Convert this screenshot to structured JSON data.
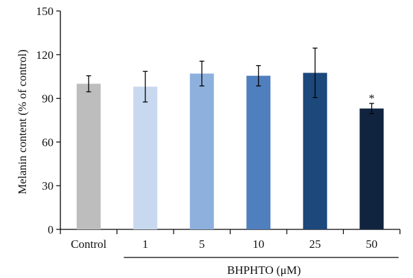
{
  "chart_data": {
    "type": "bar",
    "categories": [
      "Control",
      "1",
      "5",
      "10",
      "25",
      "50"
    ],
    "values": [
      100,
      98,
      107,
      105.5,
      107.5,
      83
    ],
    "errors": [
      5.5,
      10.5,
      8.5,
      7,
      17,
      3.5
    ],
    "colors": [
      "#bdbdbd",
      "#c7d8ef",
      "#8eb0dc",
      "#4f7fbd",
      "#1c487b",
      "#11243f"
    ],
    "significant": [
      false,
      false,
      false,
      false,
      false,
      true
    ],
    "significance_mark": "*",
    "ylabel": "Melanin content (% of control)",
    "ylim": [
      0,
      150
    ],
    "yticks": [
      0,
      30,
      60,
      90,
      120,
      150
    ],
    "group_label": "BHPHTO (μM)",
    "grid": false
  }
}
